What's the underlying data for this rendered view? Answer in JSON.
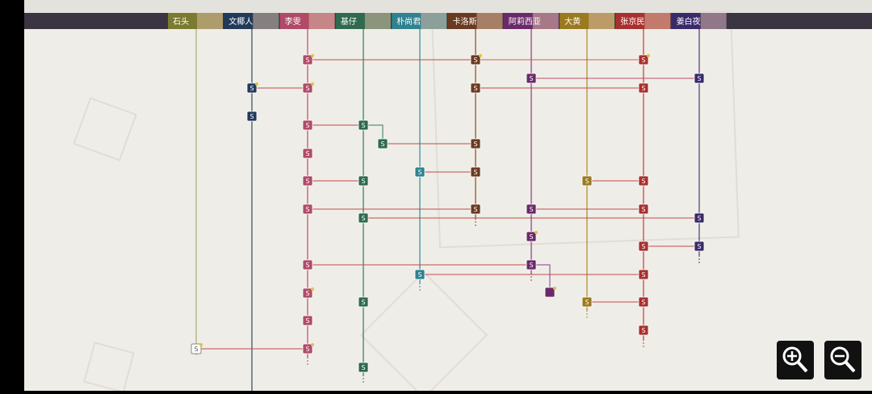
{
  "characters": [
    "石头",
    "文椰人",
    "李雯",
    "基仔",
    "朴尚君",
    "卡洛斯",
    "阿莉西亚",
    "大黄",
    "张京民",
    "姜白夜"
  ],
  "node_label": "S"
}
